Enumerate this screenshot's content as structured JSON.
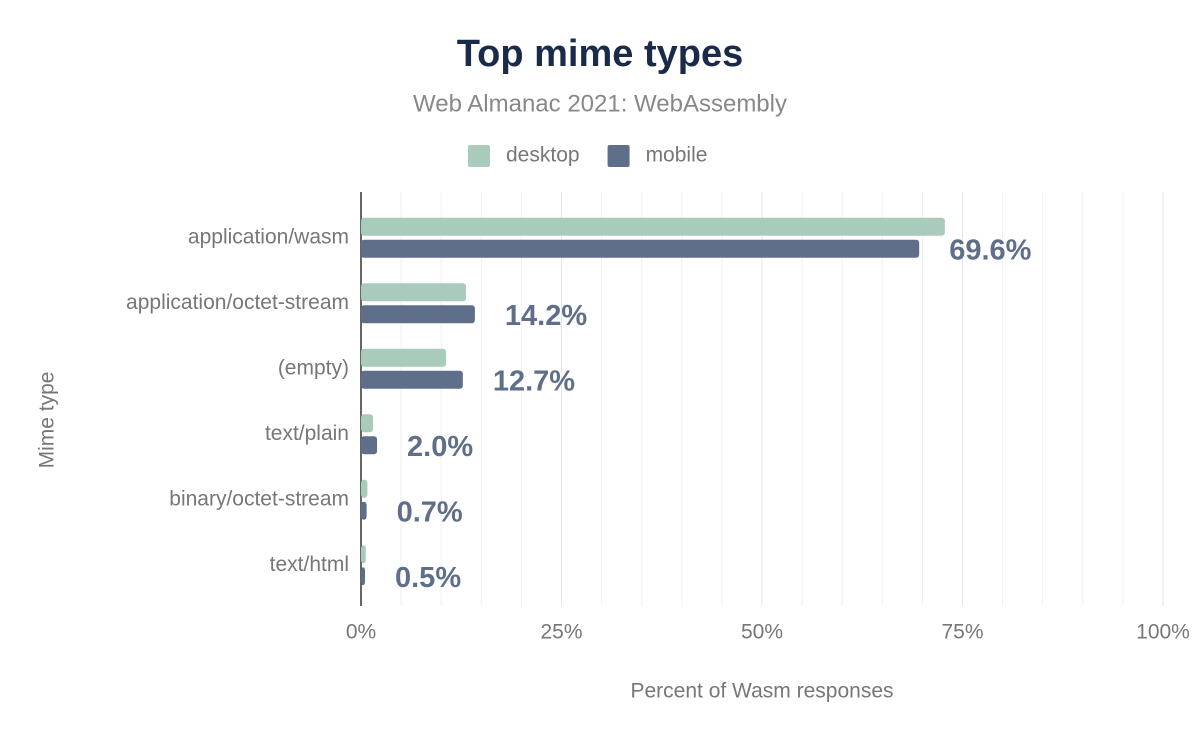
{
  "chart_data": {
    "type": "hbar",
    "title": "Top mime types",
    "subtitle": "Web Almanac 2021: WebAssembly",
    "x_label": "Percent of Wasm responses",
    "y_label": "Mime type",
    "categories": [
      "application/wasm",
      "application/octet-stream",
      "(empty)",
      "text/plain",
      "binary/octet-stream",
      "text/html"
    ],
    "series": [
      {
        "name": "desktop",
        "color": "#a8cbbb",
        "values": [
          72.8,
          13.1,
          10.6,
          1.5,
          0.8,
          0.6
        ]
      },
      {
        "name": "mobile",
        "color": "#5f6f8a",
        "values": [
          69.6,
          14.2,
          12.7,
          2.0,
          0.7,
          0.5
        ],
        "value_labels": [
          "69.6%",
          "14.2%",
          "12.7%",
          "2.0%",
          "0.7%",
          "0.5%"
        ]
      }
    ],
    "xlim": [
      0,
      100
    ],
    "xticks": [
      {
        "value": 0,
        "label": "0%"
      },
      {
        "value": 25,
        "label": "25%"
      },
      {
        "value": 50,
        "label": "50%"
      },
      {
        "value": 75,
        "label": "75%"
      },
      {
        "value": 100,
        "label": "100%"
      }
    ],
    "minor_xticks": [
      5,
      10,
      15,
      20,
      30,
      35,
      40,
      45,
      55,
      60,
      65,
      70,
      80,
      85,
      90,
      95
    ],
    "grid": true
  }
}
